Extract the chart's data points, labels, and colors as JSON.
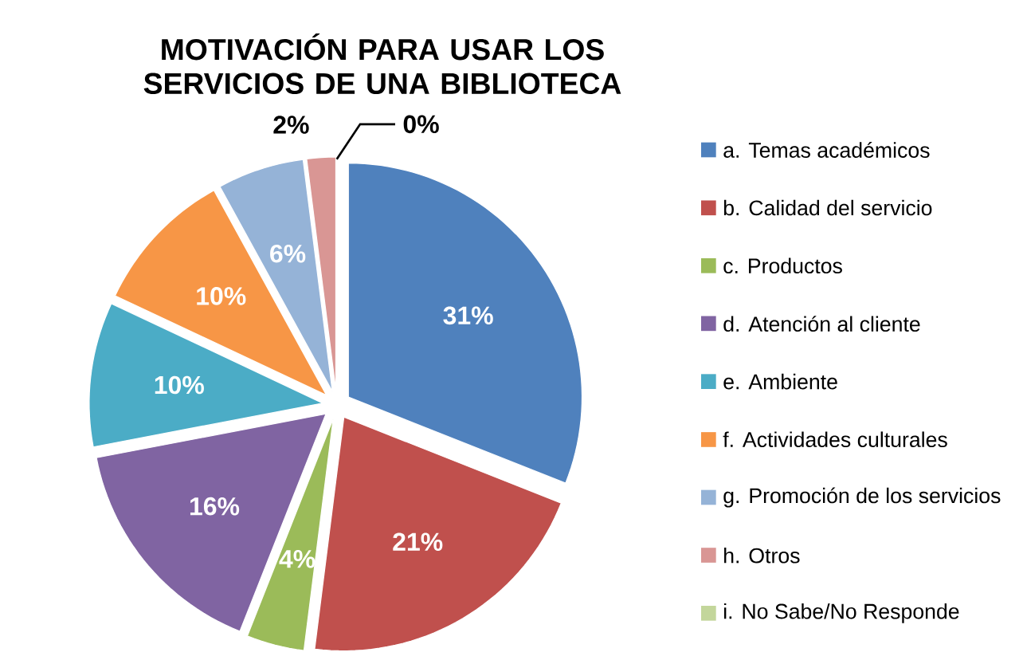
{
  "chart_data": {
    "type": "pie",
    "title": "MOTIVACIÓN PARA USAR LOS SERVICIOS DE UNA BIBLIOTECA",
    "categories": [
      "a. Temas académicos",
      "b. Calidad del servicio",
      "c. Productos",
      "d. Atención al cliente",
      "e. Ambiente",
      "f. Actividades culturales",
      "g. Promoción de los servicios",
      "h. Otros",
      "i. No Sabe/No Responde"
    ],
    "values": [
      31,
      21,
      4,
      16,
      10,
      10,
      6,
      2,
      0
    ],
    "value_labels": [
      "31%",
      "21%",
      "4%",
      "16%",
      "10%",
      "10%",
      "6%",
      "2%",
      "0%"
    ],
    "colors": [
      "#4f81bd",
      "#c0504d",
      "#9bbb59",
      "#8064a2",
      "#4bacc6",
      "#f79646",
      "#95b3d7",
      "#d99694",
      "#c3d69b"
    ],
    "legend": "right"
  }
}
